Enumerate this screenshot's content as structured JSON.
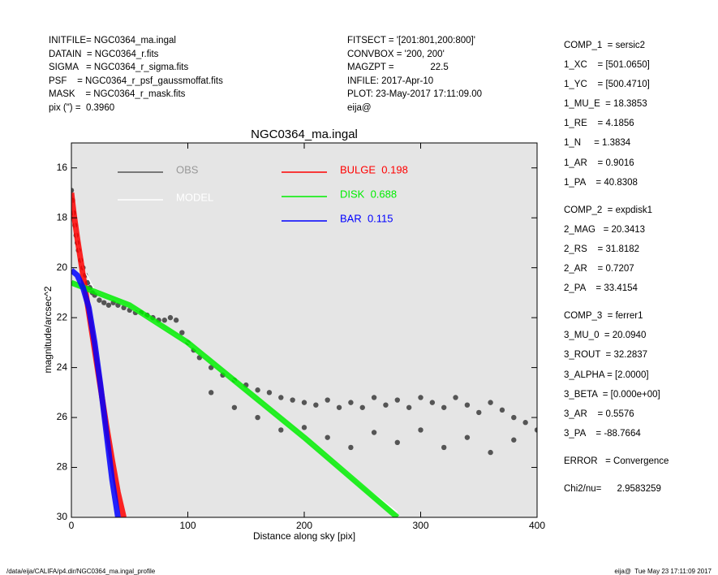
{
  "header_left": [
    "INITFILE= NGC0364_ma.ingal",
    "DATAIN  = NGC0364_r.fits",
    "SIGMA   = NGC0364_r_sigma.fits",
    "PSF    = NGC0364_r_psf_gaussmoffat.fits",
    "MASK    = NGC0364_r_mask.fits",
    "pix (\") =  0.3960"
  ],
  "header_mid": [
    "FITSECT = '[201:801,200:800]'",
    "CONVBOX = '200, 200'",
    "MAGZPT =              22.5",
    "INFILE: 2017-Apr-10",
    "PLOT: 23-May-2017 17:11:09.00",
    "eija@"
  ],
  "parameters": [
    [
      "COMP_1  = sersic2",
      "1_XC    = [501.0650]",
      "1_YC    = [500.4710]",
      "1_MU_E  = 18.3853",
      "1_RE    = 4.1856",
      "1_N     = 1.3834",
      "1_AR    = 0.9016",
      "1_PA    = 40.8308"
    ],
    [
      "COMP_2  = expdisk1",
      "2_MAG   = 20.3413",
      "2_RS    = 31.8182",
      "2_AR    = 0.7207",
      "2_PA    = 33.4154"
    ],
    [
      "COMP_3  = ferrer1",
      "3_MU_0  = 20.0940",
      "3_ROUT  = 32.2837",
      "3_ALPHA = [2.0000]",
      "3_BETA  = [0.000e+00]",
      "3_AR    = 0.5576",
      "3_PA    = -88.7664"
    ],
    [
      "ERROR   = Convergence"
    ],
    [
      "Chi2/nu=      2.9583259"
    ]
  ],
  "footer_left": "/data/eija/CALIFA/p4.dir/NGC0364_ma.ingal_profile",
  "footer_right": "eija@  Tue May 23 17:11:09 2017",
  "chart_data": {
    "type": "scatter",
    "title": "NGC0364_ma.ingal",
    "xlabel": "Distance along sky [pix]",
    "ylabel": "magnitude/arcsec^2",
    "xlim": [
      0,
      400
    ],
    "xticks": [
      0,
      100,
      200,
      300,
      400
    ],
    "ylim": [
      30,
      15
    ],
    "yticks": [
      16,
      18,
      20,
      22,
      24,
      26,
      28,
      30
    ],
    "background": "#e5e5e5",
    "series": [
      {
        "name": "OBS",
        "color": "#555555",
        "marker": "dot",
        "x": [
          0,
          1,
          2,
          3,
          4,
          5,
          6,
          8,
          10,
          12,
          14,
          16,
          18,
          20,
          24,
          28,
          32,
          36,
          40,
          45,
          50,
          55,
          60,
          65,
          70,
          75,
          80,
          85,
          90,
          95,
          100,
          105,
          110,
          120,
          130,
          140,
          150,
          160,
          170,
          180,
          190,
          200,
          200,
          210,
          220,
          220,
          230,
          240,
          240,
          250,
          260,
          260,
          270,
          280,
          280,
          290,
          300,
          300,
          310,
          320,
          320,
          330,
          340,
          340,
          350,
          360,
          360,
          370,
          380,
          380,
          390,
          400,
          120,
          140,
          160,
          180
        ],
        "values": [
          16.9,
          17.3,
          17.8,
          18.3,
          18.7,
          19.0,
          19.3,
          19.7,
          20.0,
          20.3,
          20.6,
          20.8,
          21.0,
          21.1,
          21.3,
          21.4,
          21.5,
          21.4,
          21.5,
          21.6,
          21.7,
          21.8,
          21.8,
          21.9,
          22.0,
          22.1,
          22.1,
          22.0,
          22.1,
          22.6,
          23.0,
          23.3,
          23.6,
          24.0,
          24.3,
          24.5,
          24.7,
          24.9,
          25.0,
          25.2,
          25.3,
          25.4,
          26.4,
          25.5,
          25.3,
          26.8,
          25.6,
          25.4,
          27.2,
          25.6,
          25.2,
          26.6,
          25.5,
          25.3,
          27.0,
          25.6,
          25.2,
          26.5,
          25.4,
          25.6,
          27.2,
          25.2,
          25.5,
          26.8,
          25.8,
          25.4,
          27.4,
          25.7,
          26.0,
          26.9,
          26.2,
          26.5,
          25.0,
          25.6,
          26.0,
          26.5
        ]
      },
      {
        "name": "MODEL",
        "color": "#ffffff",
        "marker": "line",
        "x": [
          0,
          5,
          10,
          20,
          50,
          100,
          150,
          200,
          250,
          280
        ],
        "values": [
          17.2,
          19.0,
          20.0,
          20.9,
          21.6,
          23.0,
          24.9,
          26.8,
          28.7,
          29.8
        ]
      },
      {
        "name": "BULGE  0.198",
        "color": "#ff0000",
        "marker": "band",
        "x": [
          0,
          2,
          5,
          10,
          15,
          20,
          25,
          30,
          35,
          40,
          45
        ],
        "values": [
          17.0,
          17.8,
          18.8,
          20.3,
          21.8,
          23.3,
          24.8,
          26.3,
          27.7,
          29.0,
          30.0
        ]
      },
      {
        "name": "DISK  0.688",
        "color": "#00ee00",
        "marker": "band",
        "x": [
          0,
          50,
          100,
          150,
          200,
          250,
          280
        ],
        "values": [
          20.6,
          21.5,
          23.0,
          24.9,
          26.8,
          28.8,
          30.0
        ]
      },
      {
        "name": "BAR  0.115",
        "color": "#0000ff",
        "marker": "band",
        "x": [
          0,
          5,
          10,
          15,
          20,
          25,
          30,
          35,
          40
        ],
        "values": [
          20.1,
          20.3,
          20.8,
          21.6,
          23.0,
          24.7,
          26.6,
          28.5,
          30.0
        ]
      }
    ]
  }
}
